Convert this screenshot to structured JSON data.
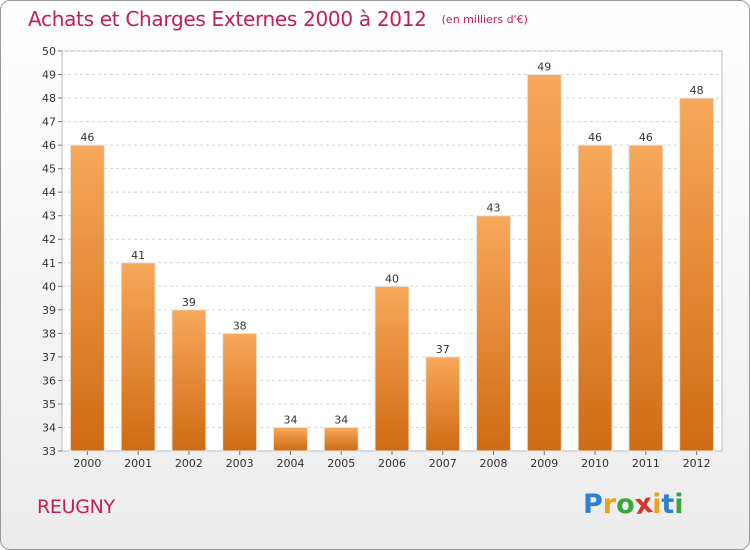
{
  "title": "Achats et Charges Externes 2000 à 2012",
  "subtitle": "(en milliers d'€)",
  "commune": "REUGNY",
  "logo": {
    "letters": [
      "P",
      "r",
      "o",
      "x",
      "i",
      "t",
      "i"
    ],
    "colors": [
      "#2d7fd0",
      "#f0a21c",
      "#3aa63b",
      "#d9322b",
      "#f0a21c",
      "#2d7fd0",
      "#3aa63b"
    ]
  },
  "colors": {
    "title": "#c21e57",
    "bar_top": "#f7a85a",
    "bar_bottom": "#d06b14"
  },
  "chart_data": {
    "type": "bar",
    "categories": [
      "2000",
      "2001",
      "2002",
      "2003",
      "2004",
      "2005",
      "2006",
      "2007",
      "2008",
      "2009",
      "2010",
      "2011",
      "2012"
    ],
    "values": [
      46,
      41,
      39,
      38,
      34,
      34,
      40,
      37,
      43,
      49,
      46,
      46,
      48
    ],
    "ylim": [
      33,
      50
    ],
    "yticks": [
      33,
      34,
      35,
      36,
      37,
      38,
      39,
      40,
      41,
      42,
      43,
      44,
      45,
      46,
      47,
      48,
      49,
      50
    ],
    "grid": true,
    "data_labels": true
  }
}
